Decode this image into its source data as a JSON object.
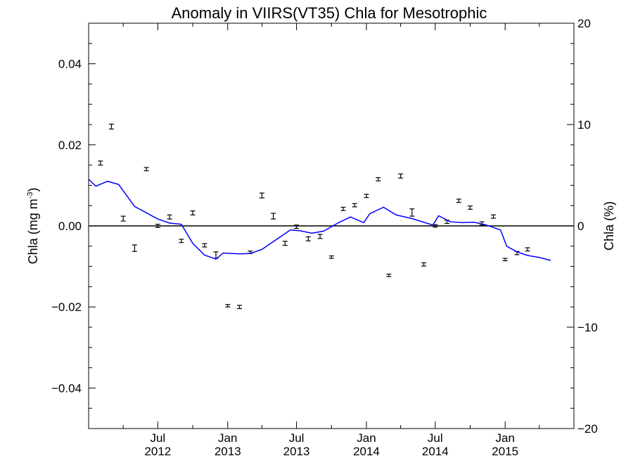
{
  "chart_data": {
    "type": "line",
    "title": "Anomaly in VIIRS(VT35) Chla for Mesotrophic",
    "ylabel_left": "Chla (mg m",
    "ylabel_left_sup": "-3",
    "ylabel_left_close": ")",
    "ylabel_right": "Chla (%)",
    "ylim_left": [
      -0.05,
      0.05
    ],
    "ylim_right": [
      -20,
      20
    ],
    "xlim": [
      "2012-01-01",
      "2015-07-01"
    ],
    "yticks_left": [
      {
        "value": 0.04,
        "label": "0.04"
      },
      {
        "value": 0.02,
        "label": "0.02"
      },
      {
        "value": 0.0,
        "label": "0.00"
      },
      {
        "value": -0.02,
        "label": "−0.02"
      },
      {
        "value": -0.04,
        "label": "−0.04"
      }
    ],
    "yticks_right": [
      {
        "value": 20,
        "label": "20"
      },
      {
        "value": 10,
        "label": "10"
      },
      {
        "value": 0,
        "label": "0"
      },
      {
        "value": -10,
        "label": "−10"
      },
      {
        "value": -20,
        "label": "−20"
      }
    ],
    "xticks": [
      {
        "date": "2012-07-01",
        "line1": "Jul",
        "line2": "2012"
      },
      {
        "date": "2013-01-01",
        "line1": "Jan",
        "line2": "2013"
      },
      {
        "date": "2013-07-01",
        "line1": "Jul",
        "line2": "2013"
      },
      {
        "date": "2014-01-01",
        "line1": "Jan",
        "line2": "2014"
      },
      {
        "date": "2014-07-01",
        "line1": "Jul",
        "line2": "2014"
      },
      {
        "date": "2015-01-01",
        "line1": "Jan",
        "line2": "2015"
      }
    ],
    "series": [
      {
        "kind": "monthly anomaly with error bars",
        "color": "#000000",
        "points": [
          {
            "x": "2012-02-01",
            "y": 0.0155,
            "err": 0.0005
          },
          {
            "x": "2012-03-01",
            "y": 0.0245,
            "err": 0.0006
          },
          {
            "x": "2012-04-01",
            "y": 0.0018,
            "err": 0.0006
          },
          {
            "x": "2012-05-01",
            "y": -0.0055,
            "err": 0.0008
          },
          {
            "x": "2012-06-01",
            "y": 0.014,
            "err": 0.0004
          },
          {
            "x": "2012-07-01",
            "y": 0.0,
            "err": 0.0004
          },
          {
            "x": "2012-08-01",
            "y": 0.0022,
            "err": 0.0005
          },
          {
            "x": "2012-09-01",
            "y": -0.0037,
            "err": 0.0004
          },
          {
            "x": "2012-10-01",
            "y": 0.0032,
            "err": 0.0005
          },
          {
            "x": "2012-11-01",
            "y": -0.0048,
            "err": 0.0004
          },
          {
            "x": "2012-12-01",
            "y": -0.0072,
            "err": 0.0008
          },
          {
            "x": "2013-01-01",
            "y": -0.0197,
            "err": 0.0003
          },
          {
            "x": "2013-02-01",
            "y": -0.02,
            "err": 0.0004
          },
          {
            "x": "2013-03-01",
            "y": -0.0065,
            "err": 0.0003
          },
          {
            "x": "2013-04-01",
            "y": 0.0075,
            "err": 0.0006
          },
          {
            "x": "2013-05-01",
            "y": 0.0024,
            "err": 0.0007
          },
          {
            "x": "2013-06-01",
            "y": -0.0043,
            "err": 0.0005
          },
          {
            "x": "2013-07-01",
            "y": -0.0002,
            "err": 0.0004
          },
          {
            "x": "2013-08-01",
            "y": -0.0032,
            "err": 0.0005
          },
          {
            "x": "2013-09-01",
            "y": -0.0026,
            "err": 0.0005
          },
          {
            "x": "2013-10-01",
            "y": -0.0077,
            "err": 0.0003
          },
          {
            "x": "2013-11-01",
            "y": 0.0042,
            "err": 0.0004
          },
          {
            "x": "2013-12-01",
            "y": 0.0051,
            "err": 0.0004
          },
          {
            "x": "2014-01-01",
            "y": 0.0074,
            "err": 0.0004
          },
          {
            "x": "2014-02-01",
            "y": 0.0115,
            "err": 0.0004
          },
          {
            "x": "2014-03-01",
            "y": -0.0122,
            "err": 0.0003
          },
          {
            "x": "2014-04-01",
            "y": 0.0123,
            "err": 0.0005
          },
          {
            "x": "2014-05-01",
            "y": 0.0033,
            "err": 0.0009
          },
          {
            "x": "2014-06-01",
            "y": -0.0095,
            "err": 0.0004
          },
          {
            "x": "2014-07-01",
            "y": 0.0,
            "err": 0.0003
          },
          {
            "x": "2014-08-01",
            "y": 0.001,
            "err": 0.0004
          },
          {
            "x": "2014-09-01",
            "y": 0.0062,
            "err": 0.0004
          },
          {
            "x": "2014-10-01",
            "y": 0.0045,
            "err": 0.0004
          },
          {
            "x": "2014-11-01",
            "y": 0.0006,
            "err": 0.0004
          },
          {
            "x": "2014-12-01",
            "y": 0.0023,
            "err": 0.0004
          },
          {
            "x": "2015-01-01",
            "y": -0.0083,
            "err": 0.0003
          },
          {
            "x": "2015-02-01",
            "y": -0.0067,
            "err": 0.0004
          },
          {
            "x": "2015-03-01",
            "y": -0.0058,
            "err": 0.0004
          }
        ]
      },
      {
        "kind": "running-mean line",
        "color": "#0000ff",
        "points": [
          {
            "x": "2012-01-01",
            "y": 0.0115
          },
          {
            "x": "2012-01-20",
            "y": 0.0098
          },
          {
            "x": "2012-02-20",
            "y": 0.011
          },
          {
            "x": "2012-03-20",
            "y": 0.0102
          },
          {
            "x": "2012-05-01",
            "y": 0.0048
          },
          {
            "x": "2012-07-01",
            "y": 0.0017
          },
          {
            "x": "2012-08-01",
            "y": 0.0007
          },
          {
            "x": "2012-09-01",
            "y": 0.0004
          },
          {
            "x": "2012-10-01",
            "y": -0.0043
          },
          {
            "x": "2012-11-01",
            "y": -0.0072
          },
          {
            "x": "2012-12-01",
            "y": -0.0082
          },
          {
            "x": "2012-12-20",
            "y": -0.0067
          },
          {
            "x": "2013-02-01",
            "y": -0.0069
          },
          {
            "x": "2013-03-01",
            "y": -0.0068
          },
          {
            "x": "2013-04-01",
            "y": -0.0058
          },
          {
            "x": "2013-06-15",
            "y": -0.001
          },
          {
            "x": "2013-07-10",
            "y": -0.0012
          },
          {
            "x": "2013-08-10",
            "y": -0.0018
          },
          {
            "x": "2013-09-10",
            "y": -0.0013
          },
          {
            "x": "2013-10-20",
            "y": 0.0008
          },
          {
            "x": "2013-11-20",
            "y": 0.0022
          },
          {
            "x": "2013-12-25",
            "y": 0.0008
          },
          {
            "x": "2014-01-10",
            "y": 0.003
          },
          {
            "x": "2014-02-15",
            "y": 0.0046
          },
          {
            "x": "2014-03-20",
            "y": 0.0027
          },
          {
            "x": "2014-05-01",
            "y": 0.0018
          },
          {
            "x": "2014-06-25",
            "y": 0.0002
          },
          {
            "x": "2014-07-10",
            "y": 0.0025
          },
          {
            "x": "2014-08-10",
            "y": 0.001
          },
          {
            "x": "2014-09-10",
            "y": 0.0008
          },
          {
            "x": "2014-10-10",
            "y": 0.0009
          },
          {
            "x": "2014-11-10",
            "y": 0.0003
          },
          {
            "x": "2014-12-20",
            "y": -0.001
          },
          {
            "x": "2015-01-05",
            "y": -0.005
          },
          {
            "x": "2015-02-01",
            "y": -0.0064
          },
          {
            "x": "2015-03-01",
            "y": -0.0073
          },
          {
            "x": "2015-04-01",
            "y": -0.0078
          },
          {
            "x": "2015-05-01",
            "y": -0.0085
          }
        ]
      }
    ]
  }
}
